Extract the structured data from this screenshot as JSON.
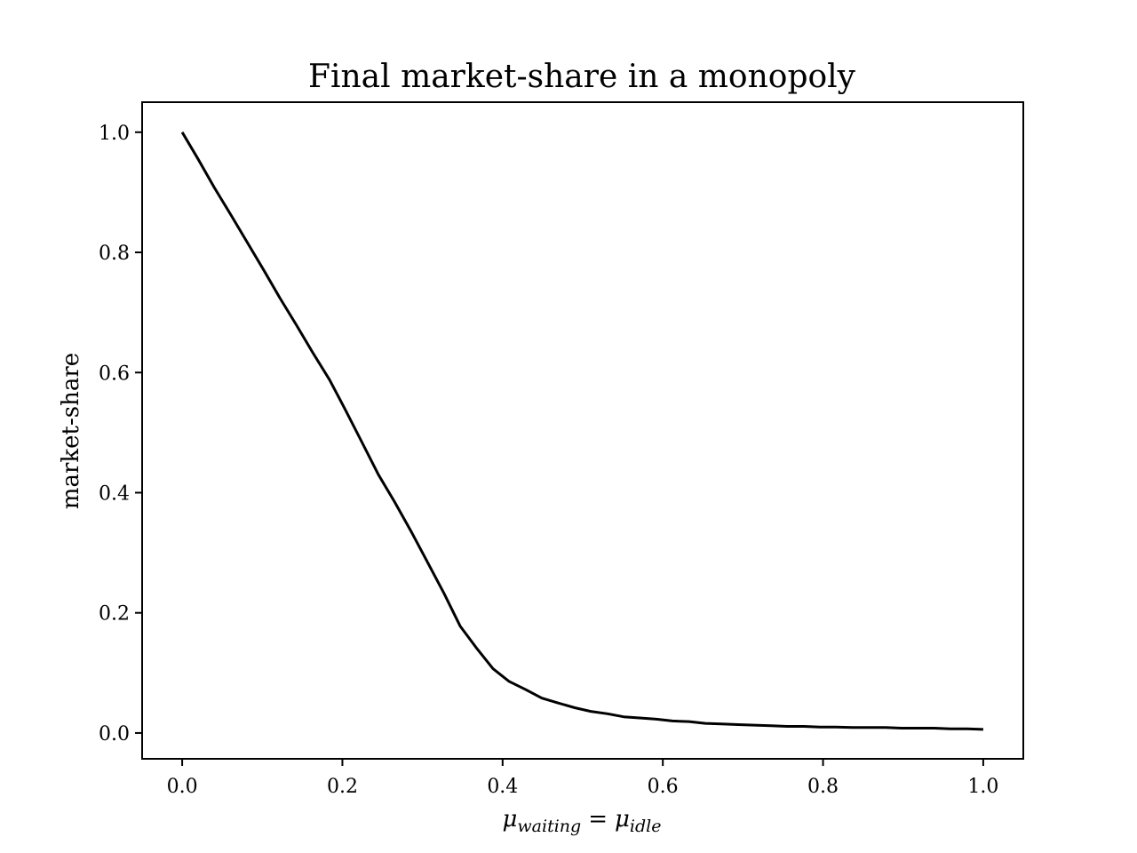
{
  "chart_data": {
    "type": "line",
    "title": "Final market-share in a monopoly",
    "xlabel": {
      "symbol": "μ",
      "sub_left": "waiting",
      "equals": "=",
      "sub_right": "idle"
    },
    "ylabel": "market-share",
    "xlim": [
      -0.05,
      1.05
    ],
    "ylim": [
      -0.043,
      1.05
    ],
    "x_ticks": [
      0.0,
      0.2,
      0.4,
      0.6,
      0.8,
      1.0
    ],
    "x_tick_labels": [
      "0.0",
      "0.2",
      "0.4",
      "0.6",
      "0.8",
      "1.0"
    ],
    "y_ticks": [
      0.0,
      0.2,
      0.4,
      0.6,
      0.8,
      1.0
    ],
    "y_tick_labels": [
      "0.0",
      "0.2",
      "0.4",
      "0.6",
      "0.8",
      "1.0"
    ],
    "grid": false,
    "line_color": "#000000",
    "series": [
      {
        "x": [
          0.0,
          0.02,
          0.04,
          0.061,
          0.082,
          0.102,
          0.122,
          0.143,
          0.163,
          0.184,
          0.204,
          0.224,
          0.245,
          0.265,
          0.286,
          0.306,
          0.327,
          0.347,
          0.367,
          0.388,
          0.408,
          0.429,
          0.449,
          0.469,
          0.49,
          0.51,
          0.531,
          0.551,
          0.571,
          0.592,
          0.612,
          0.633,
          0.653,
          0.673,
          0.694,
          0.714,
          0.735,
          0.755,
          0.776,
          0.796,
          0.816,
          0.837,
          0.857,
          0.878,
          0.898,
          0.918,
          0.939,
          0.959,
          0.98,
          1.0
        ],
        "y": [
          1.0,
          0.955,
          0.908,
          0.862,
          0.815,
          0.77,
          0.724,
          0.678,
          0.633,
          0.588,
          0.537,
          0.485,
          0.43,
          0.385,
          0.335,
          0.285,
          0.232,
          0.178,
          0.142,
          0.107,
          0.086,
          0.072,
          0.058,
          0.05,
          0.042,
          0.036,
          0.032,
          0.027,
          0.025,
          0.023,
          0.02,
          0.019,
          0.016,
          0.015,
          0.014,
          0.013,
          0.012,
          0.011,
          0.011,
          0.01,
          0.01,
          0.009,
          0.009,
          0.009,
          0.008,
          0.008,
          0.008,
          0.007,
          0.007,
          0.006
        ]
      }
    ]
  }
}
